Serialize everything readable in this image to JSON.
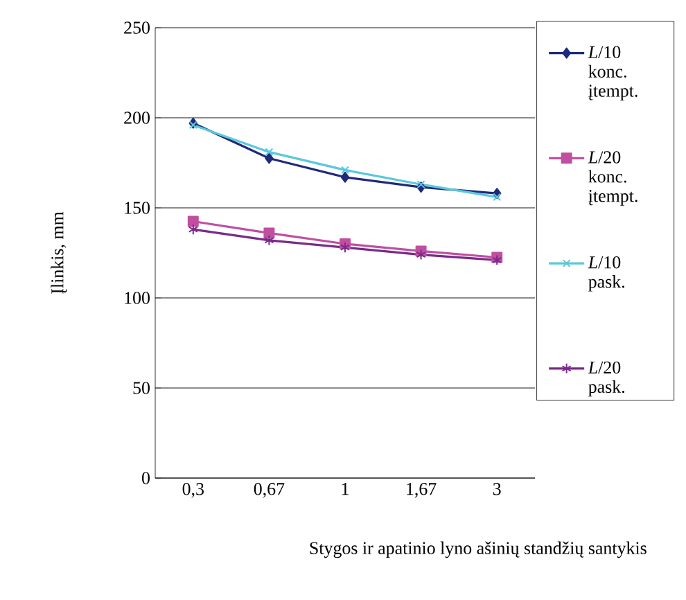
{
  "chart_data": {
    "type": "line",
    "xlabel": "Stygos ir apatinio lyno ašinių standžių santykis",
    "ylabel": "Įlinkis, mm",
    "categories": [
      "0,3",
      "0,67",
      "1",
      "1,67",
      "3"
    ],
    "series": [
      {
        "name": "*L*/10 konc. įtempt.",
        "color": "#1f2a7a",
        "marker": "diamond",
        "values": [
          197,
          177.5,
          167,
          161.5,
          158
        ]
      },
      {
        "name": "*L*/20 konc. įtempt.",
        "color": "#c04fa0",
        "marker": "square",
        "values": [
          142.5,
          136,
          130,
          126,
          122.5
        ]
      },
      {
        "name": "*L*/10 pask.",
        "color": "#5bc8dc",
        "marker": "cross",
        "values": [
          196,
          181,
          171,
          163,
          156
        ]
      },
      {
        "name": "*L*/20 pask.",
        "color": "#7a2a8a",
        "marker": "cross",
        "values": [
          138,
          132,
          128,
          124,
          121
        ]
      }
    ],
    "ylim": [
      0,
      250
    ],
    "yticks": [
      0,
      50,
      100,
      150,
      200,
      250
    ],
    "grid": "y",
    "legend": "right"
  }
}
